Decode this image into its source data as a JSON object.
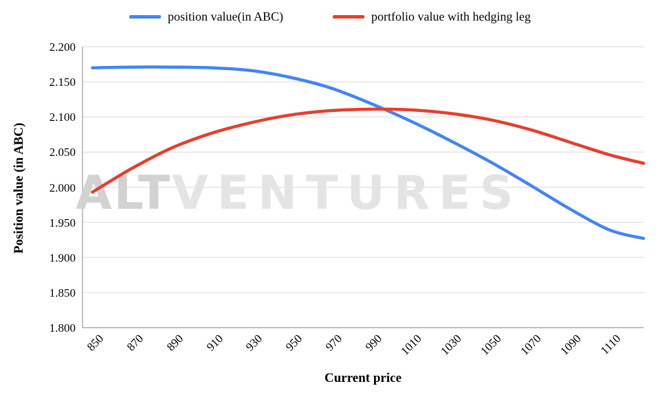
{
  "watermark": {
    "text_left": "ALT",
    "text_right": "VENTURES"
  },
  "chart_data": {
    "type": "line",
    "title": "",
    "xlabel": "Current price",
    "ylabel": "Position value (in ABC)",
    "xlim": [
      845,
      1127
    ],
    "ylim": [
      1.8,
      2.2
    ],
    "grid": "horizontal-gridlines",
    "legend_position": "top",
    "gridline_color": "#d9d9d9",
    "axis_color": "#9b9b9b",
    "x_tick_labels": [
      "850",
      "870",
      "890",
      "910",
      "930",
      "950",
      "970",
      "990",
      "1010",
      "1030",
      "1050",
      "1070",
      "1090",
      "1110"
    ],
    "x_tick_values": [
      850,
      870,
      890,
      910,
      930,
      950,
      970,
      990,
      1010,
      1030,
      1050,
      1070,
      1090,
      1110
    ],
    "y_tick_labels": [
      "2.200",
      "2.150",
      "2.100",
      "2.050",
      "2.000",
      "1.950",
      "1.900",
      "1.850",
      "1.800"
    ],
    "x": [
      850,
      870,
      890,
      910,
      930,
      950,
      970,
      990,
      1010,
      1030,
      1050,
      1070,
      1090,
      1110,
      1127
    ],
    "series": [
      {
        "name": "position value(in ABC)",
        "color": "#4285f4",
        "values": [
          2.17,
          2.171,
          2.171,
          2.17,
          2.166,
          2.156,
          2.141,
          2.119,
          2.094,
          2.066,
          2.036,
          2.003,
          1.969,
          1.939,
          1.927
        ]
      },
      {
        "name": "portfolio value with hedging leg",
        "color": "#e63e2e",
        "values": [
          1.993,
          2.027,
          2.056,
          2.077,
          2.092,
          2.103,
          2.109,
          2.111,
          2.11,
          2.105,
          2.096,
          2.082,
          2.064,
          2.046,
          2.034
        ]
      }
    ]
  }
}
